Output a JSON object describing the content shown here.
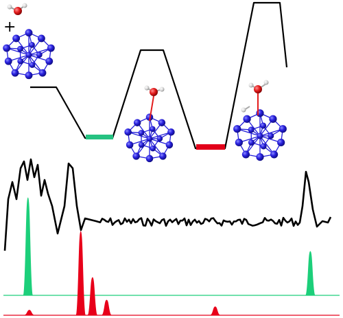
{
  "reactants": {
    "plus_sign": "+",
    "molecule_icon": "water-molecule-icon",
    "cluster_icon": "atomic-cluster-icon"
  },
  "energy_profile": {
    "line_color": "#000000",
    "levels": [
      {
        "state": "reactants",
        "marker": "none"
      },
      {
        "state": "intermediate-1",
        "marker": "#26c281"
      },
      {
        "state": "transition-state-1",
        "marker": "none"
      },
      {
        "state": "intermediate-2",
        "marker": "#e2001a"
      },
      {
        "state": "transition-state-2",
        "marker": "none"
      }
    ]
  },
  "spectra": {
    "experiment_color": "#000000",
    "green_color": "#1ccf7a",
    "red_color": "#e8001a",
    "green_peaks": [
      {
        "pos": 0.073,
        "h": 1.0
      },
      {
        "pos": 0.913,
        "h": 0.45
      }
    ],
    "red_peaks": [
      {
        "pos": 0.23,
        "h": 1.0
      },
      {
        "pos": 0.265,
        "h": 0.45
      },
      {
        "pos": 0.307,
        "h": 0.18
      },
      {
        "pos": 0.077,
        "h": 0.06
      },
      {
        "pos": 0.63,
        "h": 0.1
      }
    ]
  },
  "colors": {
    "atom_blue": "#1f1ad8",
    "oxygen_red": "#e31b1b",
    "hydrogen_white": "#e8e8e8"
  }
}
